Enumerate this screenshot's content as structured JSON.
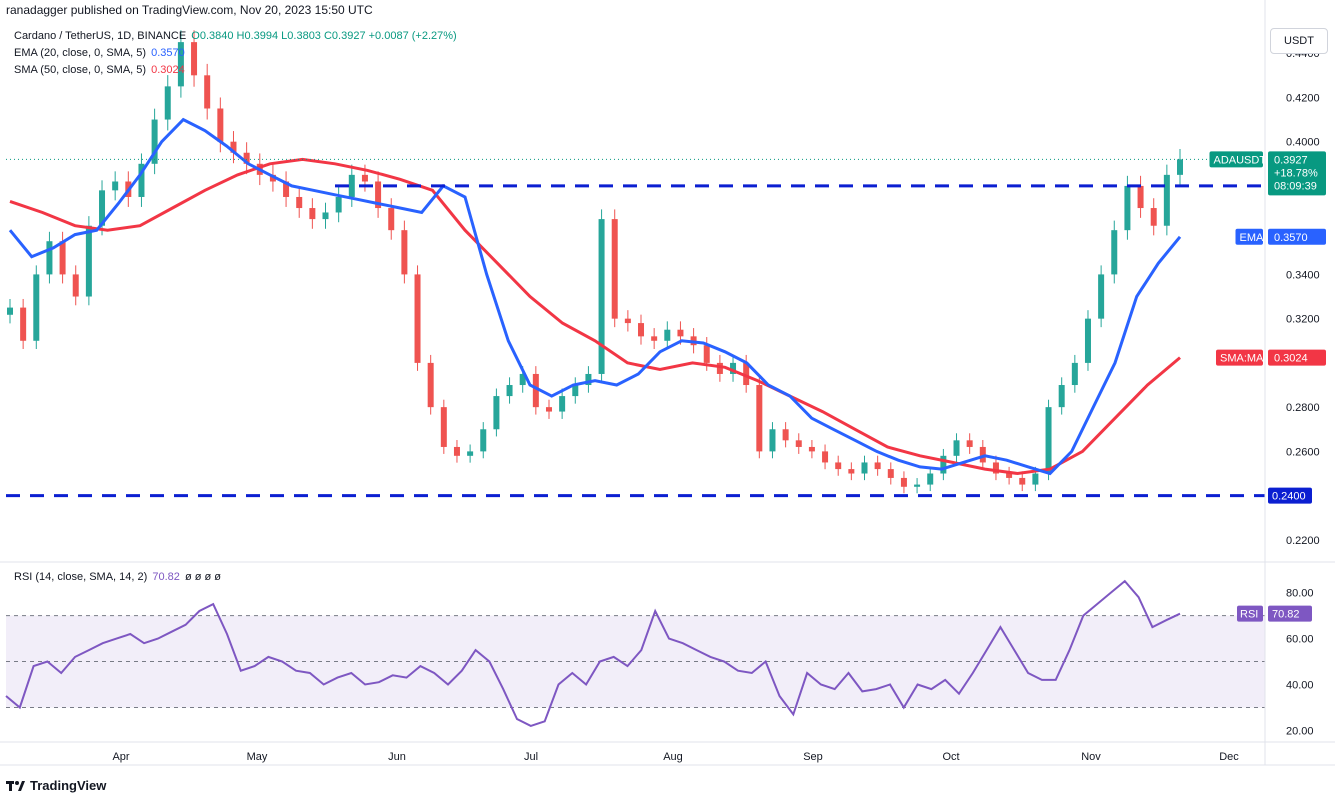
{
  "header": {
    "publisher": "ranadagger published on TradingView.com, Nov 20, 2023 15:50 UTC"
  },
  "legend": {
    "symbol": "Cardano / TetherUS, 1D, BINANCE",
    "ohlc": "O0.3840 H0.3994 L0.3803 C0.3927 +0.0087 (+2.27%)",
    "ema_label": "EMA (20, close, 0, SMA, 5)",
    "ema_value": "0.3570",
    "sma_label": "SMA (50, close, 0, SMA, 5)",
    "sma_value": "0.3024",
    "rsi_label": "RSI (14, close, SMA, 14, 2)",
    "rsi_value": "70.82",
    "rsi_extra": "ø ø ø ø"
  },
  "toolbar": {
    "currency": "USDT"
  },
  "footer": {
    "brand": "TradingView"
  },
  "colors": {
    "up": "#26a69a",
    "down": "#ef5350",
    "ema": "#2962ff",
    "sma": "#f23645",
    "rsi": "#7e57c2",
    "level": "#0b1fd1",
    "price_tag": "#089981"
  },
  "chart_data": [
    {
      "type": "candlestick",
      "title": "Cardano / TetherUS, 1D, BINANCE",
      "x_ticks": [
        "Apr",
        "May",
        "Jun",
        "Jul",
        "Aug",
        "Sep",
        "Oct",
        "Nov",
        "Dec"
      ],
      "y_ticks": [
        "0.4400",
        "0.4200",
        "0.4000",
        "0.3400",
        "0.3200",
        "0.2800",
        "0.2600",
        "0.2200"
      ],
      "ylim": [
        0.21,
        0.455
      ],
      "price_series": [
        0.325,
        0.31,
        0.34,
        0.355,
        0.34,
        0.33,
        0.362,
        0.378,
        0.382,
        0.375,
        0.39,
        0.41,
        0.425,
        0.445,
        0.43,
        0.415,
        0.4,
        0.395,
        0.39,
        0.385,
        0.382,
        0.375,
        0.37,
        0.365,
        0.368,
        0.375,
        0.385,
        0.382,
        0.37,
        0.36,
        0.34,
        0.3,
        0.28,
        0.262,
        0.258,
        0.26,
        0.27,
        0.285,
        0.29,
        0.295,
        0.28,
        0.278,
        0.285,
        0.29,
        0.295,
        0.365,
        0.32,
        0.318,
        0.312,
        0.31,
        0.315,
        0.312,
        0.308,
        0.3,
        0.295,
        0.3,
        0.29,
        0.26,
        0.27,
        0.265,
        0.262,
        0.26,
        0.255,
        0.252,
        0.25,
        0.255,
        0.252,
        0.248,
        0.244,
        0.245,
        0.25,
        0.258,
        0.265,
        0.262,
        0.255,
        0.25,
        0.248,
        0.245,
        0.25,
        0.28,
        0.29,
        0.3,
        0.32,
        0.34,
        0.36,
        0.38,
        0.37,
        0.362,
        0.385,
        0.392
      ],
      "ema_series": [
        0.36,
        0.348,
        0.352,
        0.358,
        0.36,
        0.372,
        0.385,
        0.4,
        0.41,
        0.405,
        0.398,
        0.39,
        0.385,
        0.38,
        0.378,
        0.376,
        0.374,
        0.372,
        0.37,
        0.368,
        0.38,
        0.375,
        0.34,
        0.31,
        0.29,
        0.285,
        0.29,
        0.292,
        0.29,
        0.295,
        0.305,
        0.31,
        0.309,
        0.305,
        0.3,
        0.29,
        0.285,
        0.275,
        0.27,
        0.265,
        0.26,
        0.256,
        0.253,
        0.252,
        0.255,
        0.258,
        0.256,
        0.253,
        0.25,
        0.26,
        0.28,
        0.3,
        0.33,
        0.345,
        0.357
      ],
      "sma_series": [
        0.373,
        0.368,
        0.362,
        0.36,
        0.362,
        0.37,
        0.378,
        0.385,
        0.39,
        0.392,
        0.39,
        0.387,
        0.383,
        0.378,
        0.36,
        0.345,
        0.33,
        0.318,
        0.31,
        0.3,
        0.297,
        0.3,
        0.298,
        0.292,
        0.285,
        0.278,
        0.27,
        0.262,
        0.258,
        0.255,
        0.252,
        0.25,
        0.252,
        0.26,
        0.275,
        0.29,
        0.3024
      ],
      "levels": [
        {
          "label": "0.3800",
          "value": 0.38
        },
        {
          "label": "0.2400",
          "value": 0.24
        }
      ],
      "price_tags": [
        {
          "label": "ADAUSDT",
          "value": "0.3927",
          "extra1": "+18.78%",
          "extra2": "08:09:39"
        },
        {
          "label": "EMA",
          "value": "0.3570"
        },
        {
          "label": "SMA:MA",
          "value": "0.3024"
        }
      ]
    },
    {
      "type": "line",
      "title": "RSI (14, close, SMA, 14, 2)",
      "y_ticks": [
        "80.00",
        "60.00",
        "40.00",
        "20.00"
      ],
      "ylim": [
        15,
        92
      ],
      "bands": [
        30,
        50,
        70
      ],
      "rsi_series": [
        35,
        30,
        48,
        50,
        45,
        52,
        55,
        58,
        60,
        62,
        58,
        60,
        63,
        66,
        72,
        75,
        62,
        46,
        48,
        52,
        50,
        46,
        45,
        40,
        43,
        45,
        40,
        41,
        44,
        43,
        48,
        45,
        40,
        46,
        55,
        50,
        38,
        25,
        22,
        24,
        40,
        45,
        40,
        50,
        52,
        48,
        55,
        72,
        60,
        58,
        55,
        52,
        50,
        46,
        45,
        50,
        35,
        27,
        45,
        40,
        38,
        45,
        37,
        38,
        40,
        30,
        40,
        38,
        42,
        36,
        45,
        55,
        65,
        55,
        45,
        42,
        42,
        55,
        70,
        75,
        80,
        85,
        78,
        65,
        68,
        70.82
      ],
      "tag": {
        "label": "RSI",
        "value": "70.82"
      }
    }
  ]
}
